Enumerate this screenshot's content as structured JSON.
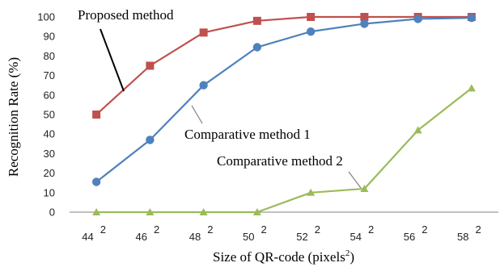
{
  "chart_data": {
    "type": "line",
    "title": "",
    "xlabel": "Size of QR-code (pixels",
    "xlabel_sup": "2",
    "xlabel_suffix": ")",
    "ylabel": "Recognition Rate (%)",
    "ylim": [
      0,
      100
    ],
    "yticks": [
      "0",
      "10",
      "20",
      "30",
      "40",
      "50",
      "60",
      "70",
      "80",
      "90",
      "100"
    ],
    "categories": [
      "44",
      "46",
      "48",
      "50",
      "52",
      "54",
      "56",
      "58"
    ],
    "category_sup": "2",
    "grid": false,
    "series": [
      {
        "name": "Proposed method",
        "color": "#c0504d",
        "marker": "square",
        "values": [
          50,
          75,
          92,
          98,
          100,
          100,
          100,
          100
        ]
      },
      {
        "name": "Comparative method 1",
        "color": "#4f81bd",
        "marker": "circle",
        "values": [
          15.5,
          37,
          65,
          84.5,
          92.5,
          96.5,
          99,
          99.5
        ]
      },
      {
        "name": "Comparative method 2",
        "color": "#9bbb59",
        "marker": "triangle",
        "values": [
          0,
          0,
          0,
          0,
          10,
          12,
          42,
          63.5
        ]
      }
    ]
  }
}
